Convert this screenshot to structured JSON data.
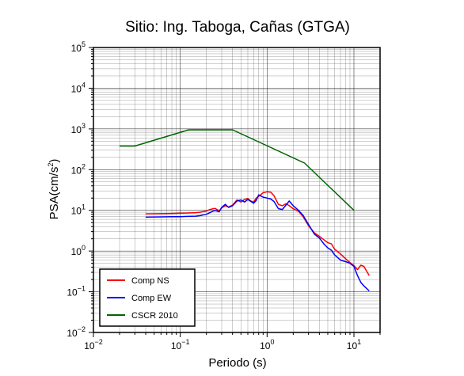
{
  "chart_data": {
    "type": "line",
    "title": "Sitio: Ing. Taboga, Cañas (GTGA)",
    "xlabel": "Periodo (s)",
    "ylabel": {
      "base": "PSA(cm/s",
      "sup": "2",
      "tail": ")"
    },
    "xscale": "log",
    "yscale": "log",
    "xlim": [
      0.01,
      20
    ],
    "ylim": [
      0.01,
      100000
    ],
    "grid": true,
    "legend_position": "bottom-left",
    "x_ticks": [
      {
        "base": "10",
        "exp": "−2"
      },
      {
        "base": "10",
        "exp": "−1"
      },
      {
        "base": "10",
        "exp": "0"
      },
      {
        "base": "10",
        "exp": "1"
      }
    ],
    "y_ticks": [
      {
        "base": "10",
        "exp": "−2"
      },
      {
        "base": "10",
        "exp": "−1"
      },
      {
        "base": "10",
        "exp": "0"
      },
      {
        "base": "10",
        "exp": "1"
      },
      {
        "base": "10",
        "exp": "2"
      },
      {
        "base": "10",
        "exp": "3"
      },
      {
        "base": "10",
        "exp": "4"
      },
      {
        "base": "10",
        "exp": "5"
      }
    ],
    "series": [
      {
        "name": "Comp NS",
        "color": "#ff0000",
        "x": [
          0.04,
          0.06,
          0.08,
          0.1,
          0.12,
          0.15,
          0.17,
          0.2,
          0.22,
          0.25,
          0.28,
          0.3,
          0.33,
          0.36,
          0.4,
          0.45,
          0.5,
          0.55,
          0.6,
          0.65,
          0.7,
          0.75,
          0.8,
          0.9,
          1.0,
          1.1,
          1.2,
          1.35,
          1.5,
          1.65,
          1.8,
          2.0,
          2.3,
          2.6,
          3.0,
          3.5,
          4.0,
          4.5,
          5.0,
          5.5,
          6.0,
          7.0,
          8.0,
          9.0,
          10.0,
          11.0,
          12.0,
          13.0,
          15.0
        ],
        "y": [
          8.2,
          8.3,
          8.4,
          8.5,
          8.6,
          8.8,
          9.0,
          9.6,
          10.5,
          11.2,
          9.8,
          11.5,
          13.0,
          12.0,
          13.5,
          18.0,
          16.0,
          18.5,
          19.5,
          17.0,
          16.0,
          20.0,
          22.0,
          27.0,
          28.5,
          28.0,
          23.0,
          14.0,
          13.0,
          14.5,
          13.0,
          11.0,
          9.5,
          7.0,
          4.2,
          2.8,
          2.3,
          1.9,
          1.6,
          1.5,
          1.1,
          0.85,
          0.65,
          0.52,
          0.44,
          0.35,
          0.45,
          0.42,
          0.25
        ]
      },
      {
        "name": "Comp EW",
        "color": "#0000ff",
        "x": [
          0.04,
          0.06,
          0.08,
          0.1,
          0.12,
          0.15,
          0.17,
          0.2,
          0.22,
          0.25,
          0.28,
          0.3,
          0.33,
          0.36,
          0.4,
          0.45,
          0.5,
          0.55,
          0.6,
          0.65,
          0.7,
          0.75,
          0.8,
          0.9,
          1.0,
          1.1,
          1.2,
          1.35,
          1.5,
          1.65,
          1.8,
          2.0,
          2.3,
          2.6,
          3.0,
          3.5,
          4.0,
          4.5,
          5.0,
          5.5,
          6.0,
          7.0,
          8.0,
          9.0,
          10.0,
          11.0,
          12.0,
          13.0,
          15.0
        ],
        "y": [
          6.8,
          6.9,
          7.0,
          7.0,
          7.1,
          7.2,
          7.4,
          8.0,
          8.8,
          10.0,
          9.2,
          11.8,
          14.0,
          11.8,
          13.0,
          17.0,
          18.0,
          16.0,
          18.5,
          16.5,
          15.0,
          17.5,
          24.0,
          21.0,
          20.0,
          19.0,
          16.5,
          11.0,
          10.5,
          13.5,
          17.0,
          13.0,
          10.0,
          7.5,
          4.5,
          2.6,
          2.1,
          1.5,
          1.2,
          1.05,
          0.8,
          0.6,
          0.55,
          0.5,
          0.42,
          0.25,
          0.17,
          0.14,
          0.105
        ]
      },
      {
        "name": "CSCR 2010",
        "color": "#006600",
        "x": [
          0.02,
          0.03,
          0.125,
          0.4,
          2.7,
          10.0
        ],
        "y": [
          380,
          380,
          950,
          950,
          145,
          10
        ]
      }
    ]
  }
}
